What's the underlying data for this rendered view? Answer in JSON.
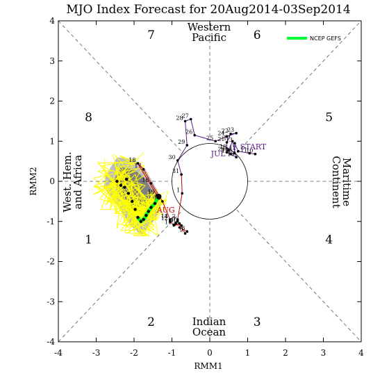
{
  "chart_data": {
    "type": "scatter",
    "title": "MJO Index Forecast for 20Aug2014-03Sep2014",
    "xlabel": "RMM1",
    "ylabel": "RMM2",
    "xlim": [
      -4,
      4
    ],
    "ylim": [
      -4,
      4
    ],
    "x_ticks": [
      "-4",
      "-3",
      "-2",
      "-1",
      "0",
      "1",
      "2",
      "3",
      "4"
    ],
    "y_ticks": [
      "-4",
      "-3",
      "-2",
      "-1",
      "0",
      "1",
      "2",
      "3",
      "4"
    ],
    "phase_labels": [
      {
        "label": "1",
        "x": -3.2,
        "y": -1.55
      },
      {
        "label": "2",
        "x": -1.55,
        "y": -3.6
      },
      {
        "label": "3",
        "x": 1.25,
        "y": -3.6
      },
      {
        "label": "4",
        "x": 3.15,
        "y": -1.55
      },
      {
        "label": "5",
        "x": 3.15,
        "y": 1.5
      },
      {
        "label": "6",
        "x": 1.25,
        "y": 3.55
      },
      {
        "label": "7",
        "x": -1.55,
        "y": 3.55
      },
      {
        "label": "8",
        "x": -3.2,
        "y": 1.5
      }
    ],
    "region_labels": [
      {
        "lines": [
          "Western",
          "Pacific"
        ]
      },
      {
        "lines": [
          "Indian",
          "Ocean"
        ]
      },
      {
        "lines": [
          "West. Hem.",
          "and Africa"
        ]
      },
      {
        "lines": [
          "Maritime",
          "Continent"
        ]
      }
    ],
    "month_labels": [
      {
        "text": "JUL",
        "x": 0.03,
        "y": 0.62,
        "color": "#5a1a8c"
      },
      {
        "text": "START",
        "x": 0.8,
        "y": 0.8,
        "color": "#5a1a8c"
      },
      {
        "text": "AUG",
        "x": -1.4,
        "y": -0.78,
        "color": "#cc0000"
      }
    ],
    "observed": {
      "color_jul": "#5a1a8c",
      "color_aug": "#cc0000",
      "points": [
        {
          "day": "10",
          "x": 1.2,
          "y": 0.68,
          "month": "JUL"
        },
        {
          "day": "11",
          "x": 1.05,
          "y": 0.7,
          "month": "JUL"
        },
        {
          "day": "12",
          "x": 0.75,
          "y": 0.75,
          "month": "JUL"
        },
        {
          "day": "13",
          "x": 0.66,
          "y": 0.95,
          "month": "JUL"
        },
        {
          "day": "14",
          "x": 0.65,
          "y": 0.7,
          "month": "JUL"
        },
        {
          "day": "15",
          "x": 0.55,
          "y": 0.68,
          "month": "JUL"
        },
        {
          "day": "16",
          "x": 0.7,
          "y": 0.6,
          "month": "JUL"
        },
        {
          "day": "17",
          "x": 0.6,
          "y": 1.0,
          "month": "JUL"
        },
        {
          "day": "18",
          "x": 0.5,
          "y": 0.78,
          "month": "JUL"
        },
        {
          "day": "19",
          "x": 0.55,
          "y": 0.68,
          "month": "JUL"
        },
        {
          "day": "20",
          "x": 0.45,
          "y": 0.72,
          "month": "JUL"
        },
        {
          "day": "21",
          "x": 0.45,
          "y": 0.97,
          "month": "JUL"
        },
        {
          "day": "22",
          "x": 0.55,
          "y": 1.18,
          "month": "JUL"
        },
        {
          "day": "23",
          "x": 0.7,
          "y": 1.2,
          "month": "JUL"
        },
        {
          "day": "24",
          "x": 0.45,
          "y": 1.12,
          "month": "JUL"
        },
        {
          "day": "25",
          "x": 0.15,
          "y": 1.0,
          "month": "JUL"
        },
        {
          "day": "26",
          "x": -0.4,
          "y": 1.15,
          "month": "JUL"
        },
        {
          "day": "27",
          "x": -0.5,
          "y": 1.55,
          "month": "JUL"
        },
        {
          "day": "28",
          "x": -0.65,
          "y": 1.5,
          "month": "JUL"
        },
        {
          "day": "29",
          "x": -0.6,
          "y": 0.9,
          "month": "JUL"
        },
        {
          "day": "30",
          "x": -0.85,
          "y": 0.52,
          "month": "JUL"
        },
        {
          "day": "31",
          "x": -0.75,
          "y": 0.17,
          "month": "JUL"
        },
        {
          "day": "1",
          "x": -0.73,
          "y": -0.3,
          "month": "AUG"
        },
        {
          "day": "2",
          "x": -0.85,
          "y": -0.95,
          "month": "AUG"
        },
        {
          "day": "3",
          "x": -0.85,
          "y": -1.0,
          "month": "AUG"
        },
        {
          "day": "4",
          "x": -0.9,
          "y": -1.05,
          "month": "AUG"
        },
        {
          "day": "5",
          "x": -0.95,
          "y": -1.08,
          "month": "AUG"
        },
        {
          "day": "6",
          "x": -0.75,
          "y": -1.1,
          "month": "AUG"
        },
        {
          "day": "7",
          "x": -0.8,
          "y": -1.15,
          "month": "AUG"
        },
        {
          "day": "8",
          "x": -0.6,
          "y": -1.25,
          "month": "AUG"
        },
        {
          "day": "9",
          "x": -0.65,
          "y": -1.3,
          "month": "AUG"
        },
        {
          "day": "10",
          "x": -0.8,
          "y": -1.05,
          "month": "AUG"
        },
        {
          "day": "11",
          "x": -0.95,
          "y": -1.1,
          "month": "AUG"
        },
        {
          "day": "12",
          "x": -1.05,
          "y": -1.0,
          "month": "AUG"
        },
        {
          "day": "13",
          "x": -1.05,
          "y": -0.95,
          "month": "AUG"
        },
        {
          "day": "14",
          "x": -1.05,
          "y": -0.95,
          "month": "AUG"
        },
        {
          "day": "15",
          "x": -1.25,
          "y": -0.5,
          "month": "AUG"
        },
        {
          "day": "16",
          "x": -1.55,
          "y": -0.05,
          "month": "AUG"
        },
        {
          "day": "17",
          "x": -1.75,
          "y": 0.3,
          "month": "AUG"
        },
        {
          "day": "18",
          "x": -1.9,
          "y": 0.45,
          "month": "AUG"
        },
        {
          "day": "19",
          "x": -1.4,
          "y": -0.35,
          "month": "AUG"
        }
      ]
    },
    "forecast_mean": {
      "color": "#000000",
      "points": [
        [
          -1.35,
          -0.38
        ],
        [
          -1.45,
          -0.55
        ],
        [
          -1.55,
          -0.65
        ],
        [
          -1.62,
          -0.75
        ],
        [
          -1.68,
          -0.85
        ],
        [
          -1.75,
          -0.95
        ],
        [
          -1.82,
          -1.0
        ],
        [
          -1.9,
          -0.9
        ],
        [
          -1.97,
          -0.7
        ],
        [
          -2.05,
          -0.5
        ],
        [
          -2.15,
          -0.3
        ],
        [
          -2.25,
          -0.15
        ],
        [
          -2.35,
          -0.1
        ],
        [
          -2.45,
          0.0
        ],
        [
          -2.2,
          0.05
        ]
      ]
    },
    "legend": {
      "label": "NCEP GEFS",
      "color": "#00ff33",
      "position": "top-right"
    },
    "grid": false,
    "colors": {
      "shade_outer": "#bdbdbd",
      "shade_inner": "#7f7f7f",
      "members": "#ffff00",
      "gefs": "#00ff33"
    }
  }
}
